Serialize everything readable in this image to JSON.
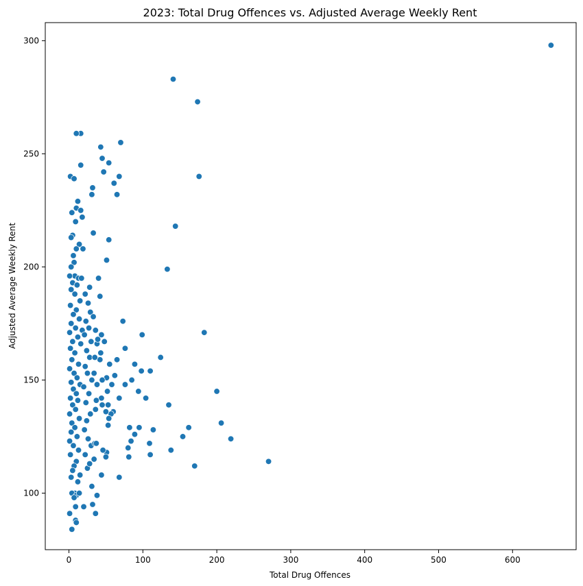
{
  "chart_data": {
    "type": "scatter",
    "title": "2023: Total Drug Offences vs. Adjusted Average Weekly Rent",
    "xlabel": "Total Drug Offences",
    "ylabel": "Adjusted Average Weekly Rent",
    "xlim": [
      -32,
      686
    ],
    "ylim": [
      75,
      308
    ],
    "xticks": [
      0,
      100,
      200,
      300,
      400,
      500,
      600
    ],
    "yticks": [
      100,
      150,
      200,
      250,
      300
    ],
    "grid": false,
    "legend": "none",
    "color": "#1f77b4",
    "points": [
      [
        652,
        298
      ],
      [
        141,
        283
      ],
      [
        174,
        273
      ],
      [
        176,
        240
      ],
      [
        144,
        218
      ],
      [
        133,
        199
      ],
      [
        183,
        171
      ],
      [
        200,
        145
      ],
      [
        206,
        131
      ],
      [
        219,
        124
      ],
      [
        270,
        114
      ],
      [
        170,
        112
      ],
      [
        154,
        125
      ],
      [
        162,
        129
      ],
      [
        135,
        139
      ],
      [
        138,
        119
      ],
      [
        124,
        160
      ],
      [
        110,
        154
      ],
      [
        99,
        170
      ],
      [
        104,
        142
      ],
      [
        114,
        128
      ],
      [
        109,
        122
      ],
      [
        110,
        117
      ],
      [
        89,
        157
      ],
      [
        98,
        154
      ],
      [
        85,
        150
      ],
      [
        94,
        145
      ],
      [
        89,
        126
      ],
      [
        95,
        129
      ],
      [
        84,
        123
      ],
      [
        82,
        129
      ],
      [
        80,
        120
      ],
      [
        81,
        116
      ],
      [
        76,
        164
      ],
      [
        73,
        176
      ],
      [
        76,
        148
      ],
      [
        68,
        142
      ],
      [
        68,
        107
      ],
      [
        65,
        159
      ],
      [
        62,
        152
      ],
      [
        60,
        136
      ],
      [
        57,
        135
      ],
      [
        58,
        148
      ],
      [
        55,
        157
      ],
      [
        53,
        139
      ],
      [
        54,
        133
      ],
      [
        53,
        130
      ],
      [
        52,
        145
      ],
      [
        51,
        151
      ],
      [
        50,
        136
      ],
      [
        51,
        118
      ],
      [
        50,
        116
      ],
      [
        51,
        203
      ],
      [
        54,
        212
      ],
      [
        54,
        246
      ],
      [
        47,
        242
      ],
      [
        45,
        248
      ],
      [
        43,
        253
      ],
      [
        70,
        255
      ],
      [
        68,
        240
      ],
      [
        61,
        237
      ],
      [
        65,
        232
      ],
      [
        42,
        187
      ],
      [
        40,
        195
      ],
      [
        44,
        170
      ],
      [
        43,
        162
      ],
      [
        48,
        167
      ],
      [
        42,
        159
      ],
      [
        45,
        150
      ],
      [
        38,
        148
      ],
      [
        44,
        142
      ],
      [
        45,
        139
      ],
      [
        46,
        119
      ],
      [
        44,
        108
      ],
      [
        38,
        99
      ],
      [
        36,
        91
      ],
      [
        32,
        95
      ],
      [
        31,
        103
      ],
      [
        33,
        215
      ],
      [
        31,
        232
      ],
      [
        32,
        235
      ],
      [
        16,
        259
      ],
      [
        10,
        259
      ],
      [
        16,
        245
      ],
      [
        2,
        240
      ],
      [
        7,
        239
      ],
      [
        12,
        229
      ],
      [
        10,
        226
      ],
      [
        16,
        225
      ],
      [
        4,
        224
      ],
      [
        18,
        222
      ],
      [
        9,
        220
      ],
      [
        5,
        214
      ],
      [
        3,
        213
      ],
      [
        14,
        210
      ],
      [
        10,
        208
      ],
      [
        19,
        208
      ],
      [
        6,
        205
      ],
      [
        7,
        202
      ],
      [
        3,
        200
      ],
      [
        8,
        196
      ],
      [
        1,
        196
      ],
      [
        13,
        195
      ],
      [
        17,
        195
      ],
      [
        5,
        193
      ],
      [
        11,
        192
      ],
      [
        3,
        190
      ],
      [
        8,
        188
      ],
      [
        15,
        185
      ],
      [
        2,
        183
      ],
      [
        10,
        181
      ],
      [
        6,
        179
      ],
      [
        14,
        177
      ],
      [
        3,
        175
      ],
      [
        9,
        173
      ],
      [
        18,
        172
      ],
      [
        1,
        171
      ],
      [
        12,
        169
      ],
      [
        5,
        167
      ],
      [
        16,
        166
      ],
      [
        2,
        164
      ],
      [
        8,
        162
      ],
      [
        4,
        159
      ],
      [
        13,
        157
      ],
      [
        1,
        155
      ],
      [
        7,
        153
      ],
      [
        11,
        151
      ],
      [
        3,
        149
      ],
      [
        15,
        148
      ],
      [
        6,
        146
      ],
      [
        10,
        144
      ],
      [
        2,
        142
      ],
      [
        12,
        141
      ],
      [
        5,
        139
      ],
      [
        9,
        137
      ],
      [
        1,
        135
      ],
      [
        14,
        133
      ],
      [
        4,
        131
      ],
      [
        8,
        129
      ],
      [
        3,
        127
      ],
      [
        11,
        125
      ],
      [
        1,
        123
      ],
      [
        6,
        121
      ],
      [
        13,
        119
      ],
      [
        2,
        117
      ],
      [
        10,
        114
      ],
      [
        7,
        112
      ],
      [
        5,
        110
      ],
      [
        15,
        108
      ],
      [
        3,
        107
      ],
      [
        12,
        105
      ],
      [
        8,
        100
      ],
      [
        4,
        100
      ],
      [
        10,
        99
      ],
      [
        7,
        98
      ],
      [
        9,
        94
      ],
      [
        9,
        88
      ],
      [
        10,
        87
      ],
      [
        1,
        91
      ],
      [
        4,
        84
      ],
      [
        14,
        100
      ],
      [
        20,
        94
      ],
      [
        25,
        111
      ],
      [
        28,
        113
      ],
      [
        22,
        117
      ],
      [
        30,
        121
      ],
      [
        26,
        124
      ],
      [
        21,
        128
      ],
      [
        24,
        132
      ],
      [
        29,
        135
      ],
      [
        23,
        140
      ],
      [
        27,
        144
      ],
      [
        20,
        147
      ],
      [
        31,
        150
      ],
      [
        25,
        153
      ],
      [
        22,
        156
      ],
      [
        28,
        160
      ],
      [
        24,
        163
      ],
      [
        30,
        167
      ],
      [
        21,
        170
      ],
      [
        27,
        173
      ],
      [
        23,
        176
      ],
      [
        29,
        180
      ],
      [
        26,
        184
      ],
      [
        22,
        188
      ],
      [
        28,
        191
      ],
      [
        34,
        115
      ],
      [
        35,
        122
      ],
      [
        36,
        137
      ],
      [
        37,
        141
      ],
      [
        34,
        153
      ],
      [
        35,
        160
      ],
      [
        38,
        166
      ],
      [
        36,
        172
      ],
      [
        33,
        178
      ],
      [
        37,
        122
      ],
      [
        39,
        168
      ]
    ]
  }
}
